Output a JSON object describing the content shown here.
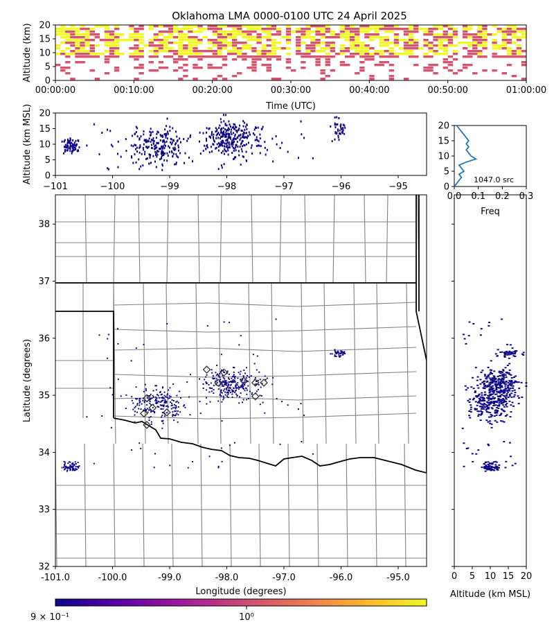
{
  "title": "Oklahoma LMA 0000-0100 UTC 24 April 2025",
  "colors": {
    "yellow": "#f0f921",
    "pink": "#d5546e",
    "navy": "#0d0887",
    "county": "#808080",
    "state": "#000000",
    "hist": "#1f77b4",
    "cbar": [
      "#0d0887",
      "#5c01a6",
      "#9c179e",
      "#cc4778",
      "#ed7953",
      "#fdb42f",
      "#f0f921"
    ]
  },
  "time_panel": {
    "ylabel": "Altitude (km)",
    "xlabel": "Time (UTC)",
    "ytick_labels": [
      "0",
      "5",
      "10",
      "15",
      "20"
    ],
    "xtick_labels": [
      "00:00:00",
      "00:10:00",
      "00:20:00",
      "00:30:00",
      "00:40:00",
      "00:50:00",
      "01:00:00"
    ]
  },
  "lon_alt_panel": {
    "ylabel": "Altitude (km MSL)",
    "ytick_labels": [
      "0",
      "5",
      "10",
      "15",
      "20"
    ],
    "xtick_labels": [
      "−101",
      "−100",
      "−99",
      "−98",
      "−97",
      "−96",
      "−95"
    ]
  },
  "hist_panel": {
    "xlabel": "Freq",
    "annotation": "1047.0 src",
    "ytick_labels": [
      "0",
      "5",
      "10",
      "15",
      "20"
    ],
    "xtick_labels": [
      "0.0",
      "0.1",
      "0.2",
      "0.3"
    ]
  },
  "map_panel": {
    "ylabel": "Latitude (degrees)",
    "xlabel": "Longitude (degrees)",
    "ytick_labels": [
      "32",
      "33",
      "34",
      "35",
      "36",
      "37",
      "38"
    ],
    "xtick_labels": [
      "-101.0",
      "-100.0",
      "-99.0",
      "-98.0",
      "-97.0",
      "-96.0",
      "-95.0"
    ]
  },
  "alt_lat_panel": {
    "xlabel": "Altitude (km MSL)",
    "xtick_labels": [
      "0",
      "5",
      "10",
      "15",
      "20"
    ]
  },
  "colorbar": {
    "left_label": "9 × 10⁻¹",
    "right_label": "10⁰"
  },
  "chart_data": {
    "type": "scatter",
    "title": "Oklahoma LMA 0000-0100 UTC 24 April 2025",
    "total_sources": 1047,
    "time_range": [
      "00:00:00",
      "01:00:00"
    ],
    "altitude_range_km": [
      0,
      20
    ],
    "lon_range": [
      -101.0,
      -94.5
    ],
    "lat_range": [
      32.0,
      38.5
    ],
    "station_markers": [
      {
        "lon": -98.35,
        "lat": 35.45
      },
      {
        "lon": -98.05,
        "lat": 35.4
      },
      {
        "lon": -98.15,
        "lat": 35.22
      },
      {
        "lon": -97.7,
        "lat": 35.25
      },
      {
        "lon": -97.5,
        "lat": 35.22
      },
      {
        "lon": -97.35,
        "lat": 35.22
      },
      {
        "lon": -97.5,
        "lat": 34.98
      },
      {
        "lon": -99.4,
        "lat": 34.95
      },
      {
        "lon": -99.3,
        "lat": 34.78
      },
      {
        "lon": -99.05,
        "lat": 34.7
      },
      {
        "lon": -99.45,
        "lat": 34.68
      },
      {
        "lon": -99.4,
        "lat": 34.48
      }
    ],
    "source_clusters": [
      {
        "name_hint": "",
        "lon_center": -100.75,
        "lat_center": 33.75,
        "alt_center_km": 10
      },
      {
        "name_hint": "",
        "lon_center": -99.2,
        "lat_center": 34.85,
        "alt_center_km": 10
      },
      {
        "name_hint": "",
        "lon_center": -97.9,
        "lat_center": 35.2,
        "alt_center_km": 12
      },
      {
        "name_hint": "",
        "lon_center": -96.05,
        "lat_center": 35.75,
        "alt_center_km": 15
      }
    ],
    "altitude_histogram": {
      "altitude_km": [
        0,
        1,
        2,
        3,
        4,
        5,
        6,
        7,
        8,
        9,
        10,
        11,
        12,
        13,
        14,
        15,
        16,
        17,
        18,
        19,
        20
      ],
      "freq": [
        0.0,
        0.01,
        0.02,
        0.03,
        0.02,
        0.04,
        0.03,
        0.02,
        0.05,
        0.09,
        0.07,
        0.06,
        0.05,
        0.06,
        0.05,
        0.06,
        0.05,
        0.04,
        0.03,
        0.02,
        0.01
      ]
    },
    "colorbar_range": [
      0.9,
      1.0
    ]
  }
}
